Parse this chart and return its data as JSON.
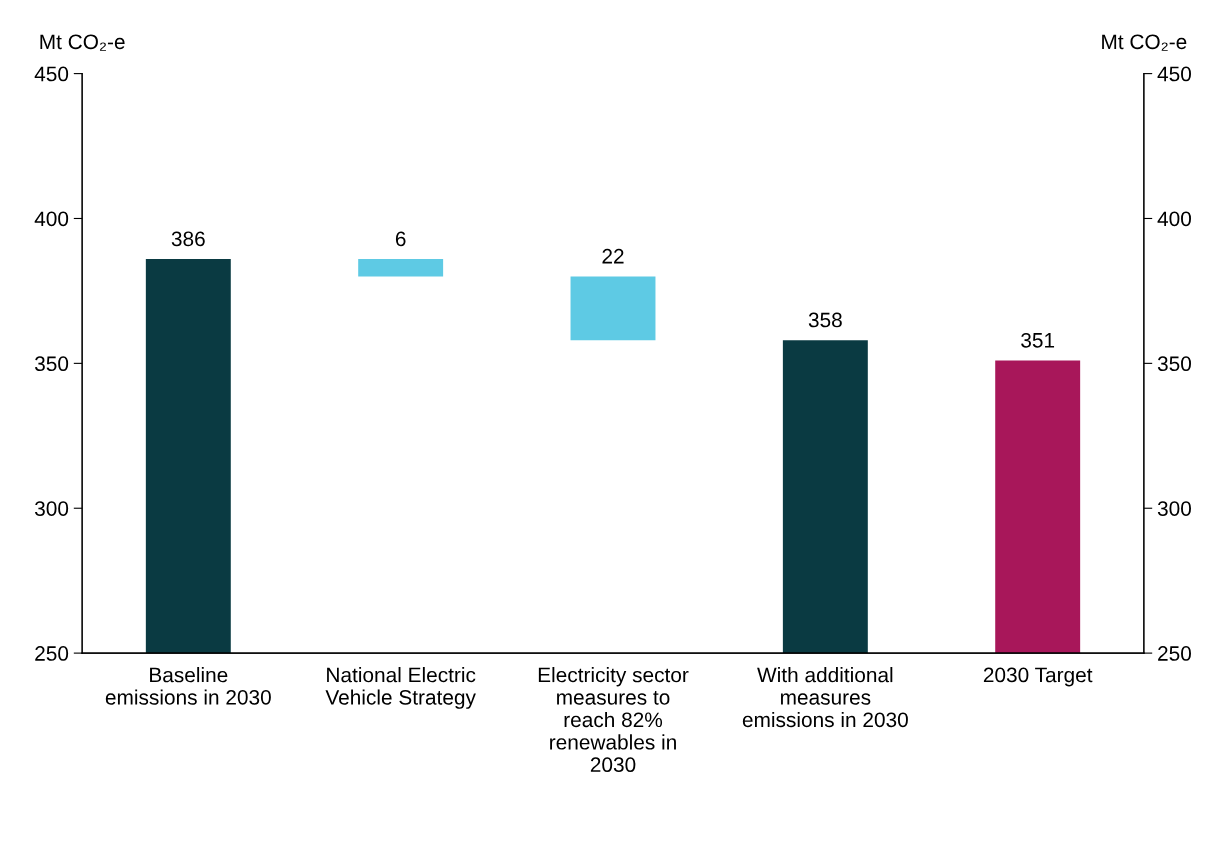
{
  "chart_data": {
    "type": "bar",
    "categories": [
      "Baseline\nemissions in 2030",
      "National Electric\nVehicle Strategy",
      "Electricity sector\nmeasures to\nreach 82%\nrenewables in\n2030",
      "With additional\nmeasures\nemissions in 2030",
      "2030 Target"
    ],
    "values": [
      386,
      6,
      22,
      358,
      351
    ],
    "base": [
      null,
      380,
      358,
      null,
      null
    ],
    "colors": [
      "#0a3a42",
      "#5ecae4",
      "#5ecae4",
      "#0a3a42",
      "#a8175a"
    ],
    "data_labels": true,
    "ylabel": "Mt CO₂-e",
    "y2label": "Mt CO₂-e",
    "ylim": [
      250,
      450
    ],
    "yticks": [
      250,
      300,
      350,
      400,
      450
    ],
    "y2lim": [
      250,
      450
    ],
    "y2ticks": [
      250,
      300,
      350,
      400,
      450
    ],
    "grid": false
  }
}
